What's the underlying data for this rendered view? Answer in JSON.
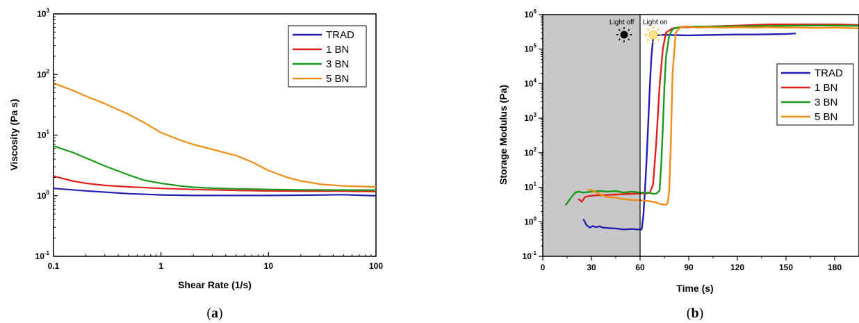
{
  "chart_data": [
    {
      "type": "line",
      "panel": "a",
      "xlabel": "Shear Rate (1/s)",
      "ylabel": "Viscosity (Pa s)",
      "xscale": "log",
      "yscale": "log",
      "xlim": [
        0.1,
        100
      ],
      "ylim": [
        0.1,
        1000
      ],
      "xticks": [
        "0.1",
        "1",
        "10",
        "100"
      ],
      "yticks": [
        {
          "base": "10",
          "exp": "-1"
        },
        {
          "base": "10",
          "exp": "0"
        },
        {
          "base": "10",
          "exp": "1"
        },
        {
          "base": "10",
          "exp": "2"
        },
        {
          "base": "10",
          "exp": "3"
        }
      ],
      "legend_position": "top-right",
      "series": [
        {
          "name": "TRAD",
          "color": "#1f1fb4",
          "x": [
            0.1,
            0.2,
            0.5,
            1,
            2,
            5,
            10,
            20,
            50,
            100
          ],
          "y": [
            1.32,
            1.2,
            1.08,
            1.03,
            1.01,
            1.01,
            1.01,
            1.02,
            1.04,
            1.0
          ]
        },
        {
          "name": "1 BN",
          "color": "#e0201c",
          "x": [
            0.1,
            0.15,
            0.2,
            0.3,
            0.5,
            1,
            2,
            5,
            10,
            20,
            50,
            100
          ],
          "y": [
            2.1,
            1.75,
            1.6,
            1.48,
            1.4,
            1.32,
            1.27,
            1.22,
            1.2,
            1.19,
            1.19,
            1.17
          ]
        },
        {
          "name": "3 BN",
          "color": "#199a1c",
          "x": [
            0.1,
            0.15,
            0.2,
            0.3,
            0.5,
            0.7,
            1,
            1.5,
            2,
            3,
            5,
            10,
            20,
            50,
            100
          ],
          "y": [
            6.6,
            5.2,
            4.2,
            3.1,
            2.2,
            1.8,
            1.6,
            1.45,
            1.38,
            1.33,
            1.3,
            1.27,
            1.25,
            1.24,
            1.24
          ]
        },
        {
          "name": "5 BN",
          "color": "#f28c12",
          "x": [
            0.1,
            0.15,
            0.2,
            0.3,
            0.5,
            0.7,
            1,
            1.5,
            2,
            3,
            5,
            7,
            10,
            15,
            20,
            30,
            50,
            100
          ],
          "y": [
            72,
            55,
            44,
            33,
            22,
            16,
            11,
            8.3,
            7.0,
            5.8,
            4.6,
            3.6,
            2.6,
            2.0,
            1.75,
            1.55,
            1.45,
            1.4
          ]
        }
      ]
    },
    {
      "type": "line",
      "panel": "b",
      "xlabel": "Time (s)",
      "ylabel": "Storage Modulus (Pa)",
      "xscale": "linear",
      "yscale": "log",
      "xlim": [
        0,
        195
      ],
      "ylim": [
        0.1,
        1000000
      ],
      "xticks": [
        "0",
        "30",
        "60",
        "90",
        "120",
        "150",
        "180"
      ],
      "yticks": [
        {
          "base": "10",
          "exp": "-1"
        },
        {
          "base": "10",
          "exp": "0"
        },
        {
          "base": "10",
          "exp": "1"
        },
        {
          "base": "10",
          "exp": "2"
        },
        {
          "base": "10",
          "exp": "3"
        },
        {
          "base": "10",
          "exp": "4"
        },
        {
          "base": "10",
          "exp": "5"
        },
        {
          "base": "10",
          "exp": "6"
        }
      ],
      "light_off_region": [
        0,
        60
      ],
      "annotations": [
        "Light off",
        "Light on"
      ],
      "legend_position": "right",
      "series": [
        {
          "name": "TRAD",
          "color": "#1f1fb4",
          "x": [
            25,
            27,
            29,
            31,
            33,
            35,
            37,
            40,
            45,
            50,
            55,
            58,
            61,
            62,
            63,
            64,
            65,
            66,
            67,
            68,
            70,
            75,
            80,
            90,
            100,
            110,
            120,
            130,
            140,
            150,
            156
          ],
          "y": [
            1.2,
            0.8,
            0.68,
            0.75,
            0.7,
            0.74,
            0.68,
            0.66,
            0.64,
            0.6,
            0.62,
            0.6,
            0.6,
            1.5,
            8,
            60,
            700,
            8000,
            60000,
            200000,
            250000,
            260000,
            255000,
            250000,
            255000,
            260000,
            265000,
            265000,
            270000,
            275000,
            285000
          ]
        },
        {
          "name": "1 BN",
          "color": "#e0201c",
          "x": [
            22,
            24,
            26,
            28,
            32,
            40,
            50,
            60,
            65,
            66,
            68,
            70,
            72,
            74,
            76,
            80,
            85,
            90,
            100,
            120,
            140,
            160,
            180,
            195
          ],
          "y": [
            4.6,
            3.8,
            5.2,
            5.5,
            5.8,
            6.0,
            6.3,
            6.6,
            6.7,
            7,
            12,
            200,
            8000,
            100000,
            300000,
            400000,
            430000,
            430000,
            450000,
            480000,
            520000,
            520000,
            520000,
            500000
          ]
        },
        {
          "name": "3 BN",
          "color": "#199a1c",
          "x": [
            14,
            16,
            18,
            20,
            22,
            25,
            30,
            35,
            40,
            45,
            50,
            55,
            60,
            65,
            68,
            70,
            72,
            73,
            74,
            75,
            76,
            78,
            80,
            85,
            90,
            100,
            120,
            140,
            160,
            180,
            195
          ],
          "y": [
            3.0,
            4.0,
            5.5,
            7.0,
            7.5,
            7.0,
            7.5,
            7.8,
            7.5,
            7.8,
            7.0,
            7.5,
            7.0,
            7.0,
            6.5,
            6.5,
            8,
            40,
            500,
            8000,
            60000,
            250000,
            380000,
            440000,
            450000,
            450000,
            460000,
            470000,
            480000,
            480000,
            470000
          ]
        },
        {
          "name": "5 BN",
          "color": "#f28c12",
          "x": [
            28,
            30,
            32,
            34,
            36,
            40,
            45,
            50,
            55,
            60,
            65,
            68,
            70,
            72,
            74,
            76,
            77,
            78,
            79,
            80,
            82,
            85,
            90,
            95,
            100,
            110,
            120,
            130,
            140,
            150,
            160,
            170,
            180,
            195
          ],
          "y": [
            8.8,
            8.3,
            7.5,
            6.8,
            6.0,
            5.2,
            5.0,
            4.5,
            4.3,
            4.2,
            4.0,
            3.8,
            3.6,
            3.3,
            3.2,
            3.1,
            3.5,
            8,
            200,
            20000,
            300000,
            440000,
            450000,
            420000,
            430000,
            420000,
            430000,
            420000,
            430000,
            420000,
            420000,
            410000,
            420000,
            400000
          ]
        }
      ]
    }
  ],
  "captions": {
    "a": {
      "open": "(",
      "letter": "a",
      "close": ")"
    },
    "b": {
      "open": "(",
      "letter": "b",
      "close": ")"
    }
  }
}
